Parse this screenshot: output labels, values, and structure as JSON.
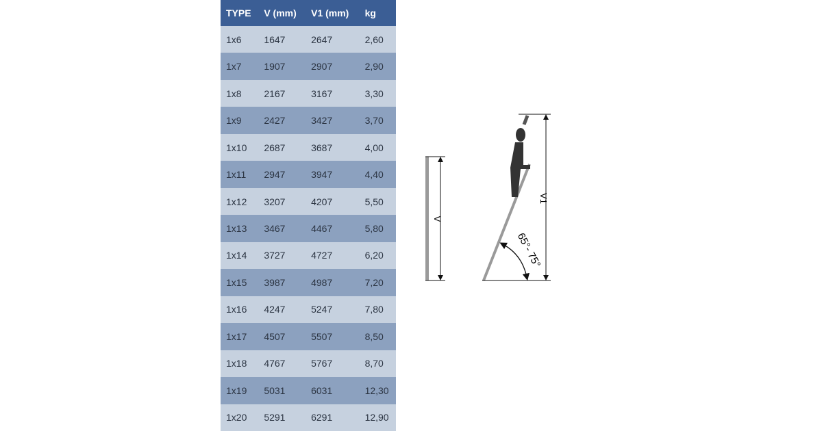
{
  "table": {
    "headers": [
      "TYPE",
      "V (mm)",
      "V1 (mm)",
      "kg"
    ],
    "rows": [
      [
        "1x6",
        "1647",
        "2647",
        "2,60"
      ],
      [
        "1x7",
        "1907",
        "2907",
        "2,90"
      ],
      [
        "1x8",
        "2167",
        "3167",
        "3,30"
      ],
      [
        "1x9",
        "2427",
        "3427",
        "3,70"
      ],
      [
        "1x10",
        "2687",
        "3687",
        "4,00"
      ],
      [
        "1x11",
        "2947",
        "3947",
        "4,40"
      ],
      [
        "1x12",
        "3207",
        "4207",
        "5,50"
      ],
      [
        "1x13",
        "3467",
        "4467",
        "5,80"
      ],
      [
        "1x14",
        "3727",
        "4727",
        "6,20"
      ],
      [
        "1x15",
        "3987",
        "4987",
        "7,20"
      ],
      [
        "1x16",
        "4247",
        "5247",
        "7,80"
      ],
      [
        "1x17",
        "4507",
        "5507",
        "8,50"
      ],
      [
        "1x18",
        "4767",
        "5767",
        "8,70"
      ],
      [
        "1x19",
        "5031",
        "6031",
        "12,30"
      ],
      [
        "1x20",
        "5291",
        "6291",
        "12,90"
      ]
    ]
  },
  "diagram": {
    "v_label": "V",
    "v1_label": "V1",
    "angle_label": "65°- 75°"
  },
  "colors": {
    "header": "#3b5e95",
    "row_light": "#c6d1df",
    "row_dark": "#8ca1bf",
    "ladder": "#9a9a9a"
  }
}
